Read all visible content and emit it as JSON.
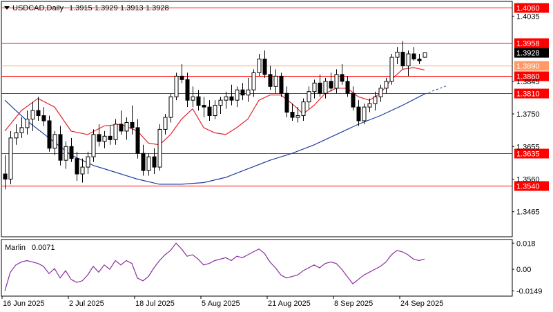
{
  "chart_data": {
    "type": "candlestick",
    "header": {
      "symbol_tf": "USDCAD,Daily",
      "ohlc": [
        "1.3915",
        "1.3929",
        "1.3913",
        "1.3928"
      ]
    },
    "price_axis": {
      "min": 1.3392,
      "max": 1.4078,
      "ticks": [
        {
          "value": 1.4035,
          "label": "1.4035"
        },
        {
          "value": 1.3845,
          "label": "1.3845"
        },
        {
          "value": 1.375,
          "label": "1.3750"
        },
        {
          "value": 1.3655,
          "label": "1.3655"
        },
        {
          "value": 1.356,
          "label": "1.3560"
        },
        {
          "value": 1.3465,
          "label": "1.3465"
        }
      ]
    },
    "current_price": {
      "value": 1.3928,
      "label": "1.3928",
      "color": "#000000"
    },
    "levels": [
      {
        "value": 1.406,
        "label": "1.4060",
        "color": "#ff0000",
        "label_color": "#ff0000"
      },
      {
        "value": 1.3958,
        "label": "1.3958",
        "color": "#ff0000",
        "label_color": "#ff0000"
      },
      {
        "value": 1.389,
        "label": "1.3890",
        "color": "#ff9a66",
        "label_color": "#ff9a66"
      },
      {
        "value": 1.386,
        "label": "1.3860",
        "color": "#ff0000",
        "label_color": "#ff0000"
      },
      {
        "value": 1.381,
        "label": "1.3810",
        "color": "#ff0000",
        "label_color": "#ff0000"
      },
      {
        "value": 1.3635,
        "label": "1.3635",
        "color": "#ff0000",
        "label_color": "#ff0000"
      },
      {
        "value": 1.354,
        "label": "1.3540",
        "color": "#ff0000",
        "label_color": "#ff0000"
      }
    ],
    "dates": [
      "16 Jun 2025",
      "2 Jul 2025",
      "18 Jul 2025",
      "5 Aug 2025",
      "21 Aug 2025",
      "8 Sep 2025",
      "24 Sep 2025"
    ],
    "date_positions": [
      0,
      12,
      24,
      36,
      48,
      60,
      72
    ],
    "candles": [
      [
        1.3575,
        1.363,
        1.353,
        1.356
      ],
      [
        1.356,
        1.37,
        1.3545,
        1.368
      ],
      [
        1.368,
        1.372,
        1.366,
        1.3695
      ],
      [
        1.3695,
        1.374,
        1.368,
        1.371
      ],
      [
        1.371,
        1.376,
        1.369,
        1.3735
      ],
      [
        1.3735,
        1.3785,
        1.37,
        1.376
      ],
      [
        1.376,
        1.38,
        1.373,
        1.3745
      ],
      [
        1.3745,
        1.377,
        1.3715,
        1.373
      ],
      [
        1.373,
        1.3745,
        1.364,
        1.365
      ],
      [
        1.365,
        1.37,
        1.363,
        1.369
      ],
      [
        1.369,
        1.3715,
        1.36,
        1.3615
      ],
      [
        1.3615,
        1.367,
        1.359,
        1.3655
      ],
      [
        1.3655,
        1.368,
        1.361,
        1.362
      ],
      [
        1.362,
        1.364,
        1.3555,
        1.3575
      ],
      [
        1.3575,
        1.362,
        1.355,
        1.3595
      ],
      [
        1.3595,
        1.364,
        1.3575,
        1.3625
      ],
      [
        1.3625,
        1.3705,
        1.361,
        1.369
      ],
      [
        1.369,
        1.372,
        1.3655,
        1.367
      ],
      [
        1.367,
        1.37,
        1.365,
        1.3685
      ],
      [
        1.3685,
        1.3715,
        1.366,
        1.3675
      ],
      [
        1.3675,
        1.3735,
        1.366,
        1.372
      ],
      [
        1.372,
        1.376,
        1.369,
        1.37
      ],
      [
        1.37,
        1.374,
        1.3675,
        1.3725
      ],
      [
        1.3725,
        1.3775,
        1.369,
        1.371
      ],
      [
        1.371,
        1.3735,
        1.362,
        1.3635
      ],
      [
        1.3635,
        1.366,
        1.357,
        1.3585
      ],
      [
        1.3585,
        1.3635,
        1.357,
        1.3625
      ],
      [
        1.3625,
        1.365,
        1.3575,
        1.3595
      ],
      [
        1.3595,
        1.372,
        1.3585,
        1.3705
      ],
      [
        1.3705,
        1.375,
        1.369,
        1.374
      ],
      [
        1.374,
        1.381,
        1.3725,
        1.38
      ],
      [
        1.38,
        1.387,
        1.379,
        1.386
      ],
      [
        1.386,
        1.3895,
        1.384,
        1.385
      ],
      [
        1.385,
        1.387,
        1.377,
        1.379
      ],
      [
        1.379,
        1.383,
        1.377,
        1.38
      ],
      [
        1.38,
        1.382,
        1.376,
        1.3775
      ],
      [
        1.3775,
        1.38,
        1.374,
        1.377
      ],
      [
        1.377,
        1.379,
        1.373,
        1.3745
      ],
      [
        1.3745,
        1.379,
        1.3735,
        1.3775
      ],
      [
        1.3775,
        1.38,
        1.375,
        1.379
      ],
      [
        1.379,
        1.3815,
        1.3765,
        1.38
      ],
      [
        1.38,
        1.3835,
        1.3775,
        1.379
      ],
      [
        1.379,
        1.383,
        1.377,
        1.382
      ],
      [
        1.382,
        1.384,
        1.379,
        1.3805
      ],
      [
        1.3805,
        1.3855,
        1.3785,
        1.382
      ],
      [
        1.382,
        1.388,
        1.38,
        1.387
      ],
      [
        1.387,
        1.3925,
        1.386,
        1.391
      ],
      [
        1.391,
        1.3935,
        1.3855,
        1.3865
      ],
      [
        1.3865,
        1.389,
        1.382,
        1.383
      ],
      [
        1.383,
        1.388,
        1.381,
        1.386
      ],
      [
        1.386,
        1.387,
        1.38,
        1.381
      ],
      [
        1.381,
        1.383,
        1.374,
        1.3755
      ],
      [
        1.3755,
        1.378,
        1.373,
        1.374
      ],
      [
        1.374,
        1.377,
        1.3725,
        1.3745
      ],
      [
        1.3745,
        1.3795,
        1.373,
        1.3785
      ],
      [
        1.3785,
        1.383,
        1.3765,
        1.3815
      ],
      [
        1.3815,
        1.385,
        1.3795,
        1.384
      ],
      [
        1.384,
        1.3865,
        1.38,
        1.381
      ],
      [
        1.381,
        1.3855,
        1.3795,
        1.3845
      ],
      [
        1.3845,
        1.387,
        1.3815,
        1.3825
      ],
      [
        1.3825,
        1.388,
        1.381,
        1.3865
      ],
      [
        1.3865,
        1.3895,
        1.3835,
        1.3845
      ],
      [
        1.3845,
        1.386,
        1.38,
        1.381
      ],
      [
        1.381,
        1.383,
        1.376,
        1.377
      ],
      [
        1.377,
        1.379,
        1.3715,
        1.373
      ],
      [
        1.373,
        1.378,
        1.372,
        1.377
      ],
      [
        1.377,
        1.3795,
        1.3755,
        1.378
      ],
      [
        1.378,
        1.3815,
        1.376,
        1.38
      ],
      [
        1.38,
        1.3835,
        1.3785,
        1.3825
      ],
      [
        1.3825,
        1.3855,
        1.381,
        1.3845
      ],
      [
        1.3845,
        1.3925,
        1.3835,
        1.3915
      ],
      [
        1.3915,
        1.3945,
        1.3895,
        1.393
      ],
      [
        1.393,
        1.3962,
        1.388,
        1.389
      ],
      [
        1.389,
        1.3935,
        1.386,
        1.3925
      ],
      [
        1.3925,
        1.3945,
        1.3905,
        1.391
      ],
      [
        1.391,
        1.3925,
        1.3895,
        1.3905
      ],
      [
        1.3915,
        1.3929,
        1.3913,
        1.3928
      ]
    ],
    "ma_fast": {
      "color": "#e8202a",
      "points": [
        [
          0,
          1.37
        ],
        [
          3,
          1.376
        ],
        [
          6,
          1.3795
        ],
        [
          9,
          1.377
        ],
        [
          12,
          1.37
        ],
        [
          15,
          1.369
        ],
        [
          18,
          1.3715
        ],
        [
          21,
          1.372
        ],
        [
          24,
          1.37
        ],
        [
          26,
          1.3665
        ],
        [
          28,
          1.366
        ],
        [
          30,
          1.369
        ],
        [
          32,
          1.3735
        ],
        [
          34,
          1.3765
        ],
        [
          36,
          1.371
        ],
        [
          38,
          1.3695
        ],
        [
          40,
          1.369
        ],
        [
          42,
          1.371
        ],
        [
          44,
          1.3735
        ],
        [
          46,
          1.379
        ],
        [
          48,
          1.3805
        ],
        [
          50,
          1.3805
        ],
        [
          52,
          1.378
        ],
        [
          54,
          1.375
        ],
        [
          56,
          1.3775
        ],
        [
          58,
          1.381
        ],
        [
          60,
          1.3825
        ],
        [
          62,
          1.3825
        ],
        [
          64,
          1.38
        ],
        [
          66,
          1.379
        ],
        [
          68,
          1.381
        ],
        [
          70,
          1.385
        ],
        [
          72,
          1.388
        ],
        [
          74,
          1.3885
        ],
        [
          76,
          1.3878
        ]
      ]
    },
    "ma_slow": {
      "color": "#1d3fa0",
      "points": [
        [
          0,
          1.379
        ],
        [
          4,
          1.373
        ],
        [
          8,
          1.368
        ],
        [
          12,
          1.363
        ],
        [
          16,
          1.36
        ],
        [
          20,
          1.358
        ],
        [
          24,
          1.356
        ],
        [
          28,
          1.3545
        ],
        [
          32,
          1.3545
        ],
        [
          36,
          1.355
        ],
        [
          40,
          1.3565
        ],
        [
          44,
          1.359
        ],
        [
          48,
          1.3615
        ],
        [
          52,
          1.3635
        ],
        [
          56,
          1.366
        ],
        [
          60,
          1.369
        ],
        [
          64,
          1.372
        ],
        [
          68,
          1.3745
        ],
        [
          72,
          1.3775
        ],
        [
          75,
          1.38
        ],
        [
          76,
          1.3808
        ]
      ],
      "projection": [
        [
          76,
          1.3808
        ],
        [
          78,
          1.382
        ],
        [
          80,
          1.3832
        ]
      ]
    },
    "oscillator": {
      "name": "Marlin",
      "value_label": "0.0071",
      "color": "#8b2ea0",
      "range": [
        -0.0185,
        0.0205
      ],
      "ticks": [
        {
          "value": 0.018,
          "label": "0.018"
        },
        {
          "value": 0.0,
          "label": "0.00"
        },
        {
          "value": -0.0149,
          "label": "-0.0149"
        }
      ],
      "values": [
        -0.015,
        -0.002,
        0.003,
        0.005,
        0.006,
        0.005,
        0.004,
        0.002,
        -0.003,
        0.0005,
        -0.006,
        -0.001,
        -0.007,
        -0.009,
        -0.008,
        -0.004,
        0.002,
        -0.002,
        0.003,
        0.0,
        0.006,
        0.003,
        0.006,
        0.004,
        -0.006,
        -0.008,
        -0.005,
        0.001,
        0.006,
        0.01,
        0.013,
        0.018,
        0.014,
        0.009,
        0.01,
        0.007,
        0.003,
        0.004,
        0.006,
        0.007,
        0.008,
        0.006,
        0.009,
        0.008,
        0.01,
        0.012,
        0.014,
        0.011,
        0.005,
        0.001,
        -0.004,
        -0.006,
        -0.005,
        -0.004,
        -0.001,
        0.001,
        0.003,
        0.001,
        0.004,
        0.005,
        0.004,
        0.0,
        -0.005,
        -0.01,
        -0.007,
        -0.004,
        -0.002,
        0.0,
        0.002,
        0.005,
        0.01,
        0.013,
        0.012,
        0.01,
        0.007,
        0.006,
        0.0071
      ]
    }
  }
}
